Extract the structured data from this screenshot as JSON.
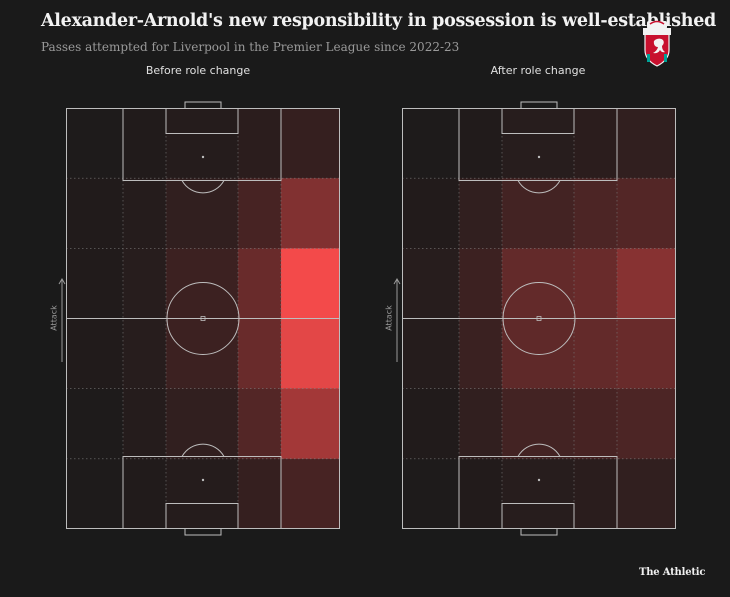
{
  "header": {
    "title": "Alexander-Arnold's new responsibility in possession is well-established",
    "subtitle": "Passes attempted for Liverpool in the Premier League since 2022-23"
  },
  "crest": {
    "text_top": "LIVERPOOL",
    "text_bottom": "FOOTBALL CLUB",
    "icon": "liverbird-crest"
  },
  "attack_label": "Attack",
  "brand": "The Athletic",
  "colors": {
    "background": "#1a1a1a",
    "heat": "#ff4d4d",
    "lines": "#bdbdbd"
  },
  "chart_data": [
    {
      "type": "heatmap",
      "title": "Before role change",
      "grid": {
        "columns": 5,
        "rows": 6,
        "orientation": "rows listed from attacking end to own goal"
      },
      "scale": [
        0,
        1
      ],
      "values": [
        [
          0.02,
          0.03,
          0.05,
          0.08,
          0.12
        ],
        [
          0.03,
          0.05,
          0.1,
          0.2,
          0.45
        ],
        [
          0.03,
          0.06,
          0.15,
          0.35,
          0.95
        ],
        [
          0.03,
          0.06,
          0.15,
          0.35,
          0.88
        ],
        [
          0.02,
          0.05,
          0.1,
          0.25,
          0.6
        ],
        [
          0.02,
          0.03,
          0.05,
          0.12,
          0.2
        ]
      ]
    },
    {
      "type": "heatmap",
      "title": "After role change",
      "grid": {
        "columns": 5,
        "rows": 6,
        "orientation": "rows listed from attacking end to own goal"
      },
      "scale": [
        0,
        1
      ],
      "values": [
        [
          0.02,
          0.03,
          0.06,
          0.08,
          0.1
        ],
        [
          0.04,
          0.1,
          0.18,
          0.22,
          0.25
        ],
        [
          0.06,
          0.15,
          0.32,
          0.35,
          0.48
        ],
        [
          0.05,
          0.14,
          0.3,
          0.32,
          0.35
        ],
        [
          0.03,
          0.1,
          0.18,
          0.2,
          0.22
        ],
        [
          0.02,
          0.04,
          0.06,
          0.07,
          0.1
        ]
      ]
    }
  ]
}
